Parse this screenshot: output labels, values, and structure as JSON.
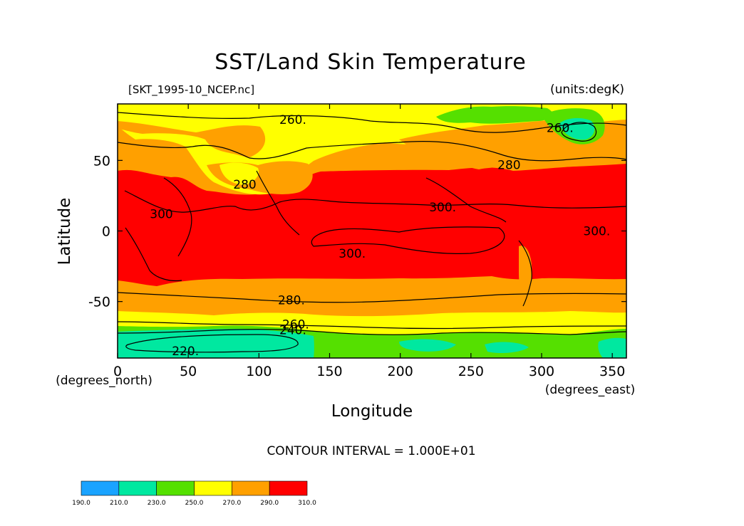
{
  "chart_data": {
    "type": "contour",
    "title": "SST/Land Skin Temperature",
    "file_label": "[SKT_1995-10_NCEP.nc]",
    "units_label": "(units:degK)",
    "xlabel": "Longitude",
    "ylabel": "Latitude",
    "x_units": "(degrees_east)",
    "y_units": "(degrees_north)",
    "xlim": [
      0,
      360
    ],
    "ylim": [
      -90,
      90
    ],
    "x_ticks": [
      0,
      50,
      100,
      150,
      200,
      250,
      300,
      350
    ],
    "y_ticks": [
      -50,
      0,
      50
    ],
    "contour_interval_text": "CONTOUR INTERVAL = 1.000E+01",
    "contour_labels": [
      {
        "text": "260.",
        "lon": 124,
        "lat": 79
      },
      {
        "text": "260.",
        "lon": 313,
        "lat": 73
      },
      {
        "text": "280",
        "lon": 277,
        "lat": 47
      },
      {
        "text": "280",
        "lon": 90,
        "lat": 33
      },
      {
        "text": "300",
        "lon": 31,
        "lat": 12
      },
      {
        "text": "300.",
        "lon": 230,
        "lat": 17
      },
      {
        "text": "300.",
        "lon": 166,
        "lat": -16
      },
      {
        "text": "300.",
        "lon": 339,
        "lat": 0
      },
      {
        "text": "280.",
        "lon": 123,
        "lat": -49
      },
      {
        "text": "260.",
        "lon": 126,
        "lat": -66
      },
      {
        "text": "240.",
        "lon": 124,
        "lat": -70
      },
      {
        "text": "220.",
        "lon": 48,
        "lat": -85
      }
    ],
    "colorbar": {
      "ticks": [
        "190.0",
        "210.0",
        "230.0",
        "250.0",
        "270.0",
        "290.0",
        "310.0"
      ],
      "colors": [
        "#1aa3ff",
        "#00e8a0",
        "#55e000",
        "#ffff00",
        "#ffa000",
        "#ff0000"
      ]
    },
    "colors": {
      "t190_210": "#1aa3ff",
      "t210_230": "#00e8a0",
      "t230_250": "#55e000",
      "t250_270": "#ffff00",
      "t270_290": "#ffa000",
      "t290_310": "#ff0000"
    }
  }
}
